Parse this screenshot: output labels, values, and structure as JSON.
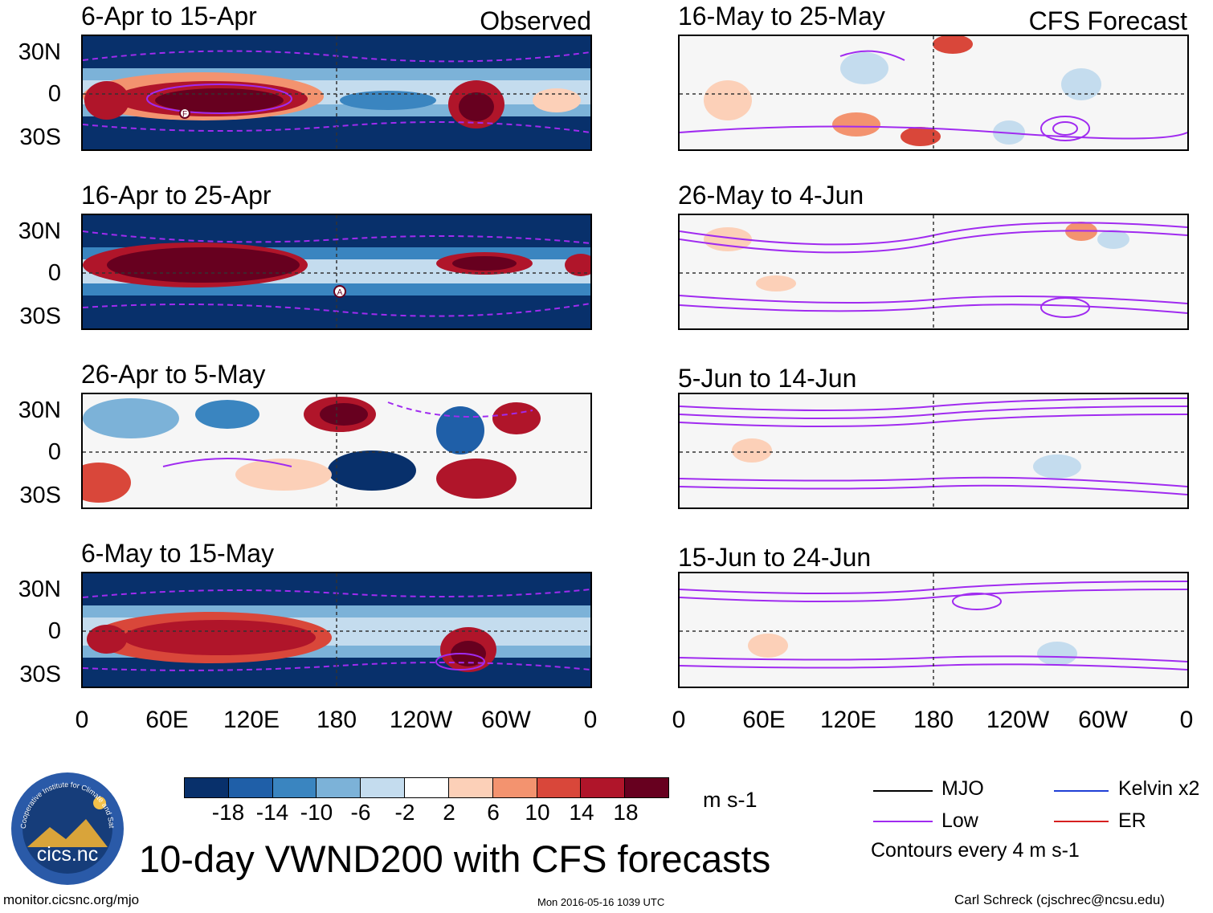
{
  "observed_label": "Observed",
  "forecast_label": "CFS Forecast",
  "observed_panels": [
    {
      "title": "6-Apr to 15-Apr"
    },
    {
      "title": "16-Apr to 25-Apr"
    },
    {
      "title": "26-Apr to 5-May"
    },
    {
      "title": "6-May to 15-May"
    }
  ],
  "forecast_panels": [
    {
      "title": "16-May to 25-May"
    },
    {
      "title": "26-May to 4-Jun"
    },
    {
      "title": "5-Jun to 14-Jun"
    },
    {
      "title": "15-Jun to 24-Jun"
    }
  ],
  "lat_labels": [
    "30N",
    "0",
    "30S"
  ],
  "lon_labels": [
    "0",
    "60E",
    "120E",
    "180",
    "120W",
    "60W",
    "0"
  ],
  "colorbar": {
    "tick_labels": [
      "-18",
      "-14",
      "-10",
      "-6",
      "-2",
      "2",
      "6",
      "10",
      "14",
      "18"
    ],
    "colors": [
      "#08306b",
      "#1f5fa8",
      "#3a85c0",
      "#7cb2d8",
      "#c4dcee",
      "#ffffff",
      "#fcd0b8",
      "#f3936f",
      "#d9473a",
      "#b0152a",
      "#67001f"
    ],
    "units": "m s-1"
  },
  "legend": {
    "items": [
      {
        "label": "MJO",
        "color": "#000000"
      },
      {
        "label": "Kelvin x2",
        "color": "#1f3fd6"
      },
      {
        "label": "Low",
        "color": "#a02bf0"
      },
      {
        "label": "ER",
        "color": "#d62020"
      }
    ],
    "note": "Contours every 4 m s-1"
  },
  "main_title": "10-day VWND200 with CFS forecasts",
  "logo_text": "cics.nc",
  "logo_ring_text": "Cooperative Institute for Climate and Satellites",
  "footer": {
    "url": "monitor.cicsnc.org/mjo",
    "timestamp": "Mon 2016-05-16 1039 UTC",
    "credit": "Carl Schreck (cjschrec@ncsu.edu)"
  },
  "markers": {
    "panel1": "F",
    "panel2": "A"
  }
}
